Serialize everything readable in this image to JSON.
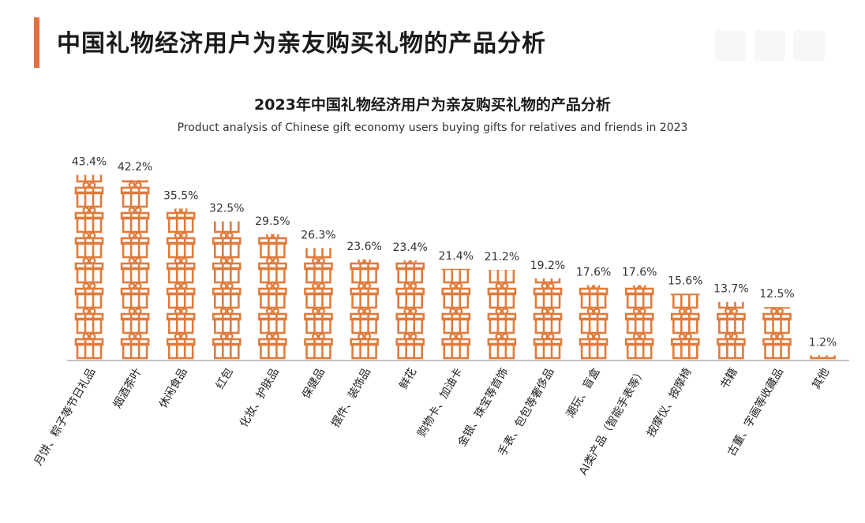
{
  "page": {
    "title": "中国礼物经济用户为亲友购买礼物的产品分析",
    "accent_color": "#E2703F"
  },
  "chart_data": {
    "type": "bar",
    "title": "2023年中国礼物经济用户为亲友购买礼物的产品分析",
    "subtitle": "Product analysis of Chinese gift economy users buying gifts for relatives and friends in 2023",
    "unit": "%",
    "bar_style": "stacked-gift-box-icons",
    "bar_color": "#E07B3C",
    "ylim": [
      0,
      45
    ],
    "grid": false,
    "categories": [
      "月饼、粽子等节日礼品",
      "烟酒茶叶",
      "休闲食品",
      "红包",
      "化妆、护肤品",
      "保健品",
      "摆件、装饰品",
      "鲜花",
      "购物卡、加油卡",
      "金银、珠宝等首饰",
      "手表、包包等奢侈品",
      "潮玩、盲盒",
      "AI类产品（智能手表等）",
      "按摩仪、按摩椅",
      "书籍",
      "古董、字画等收藏品",
      "其他"
    ],
    "values": [
      43.4,
      42.2,
      35.5,
      32.5,
      29.5,
      26.3,
      23.6,
      23.4,
      21.4,
      21.2,
      19.2,
      17.6,
      17.6,
      15.6,
      13.7,
      12.5,
      1.2
    ],
    "value_labels": [
      "43.4%",
      "42.2%",
      "35.5%",
      "32.5%",
      "29.5%",
      "26.3%",
      "23.6%",
      "23.4%",
      "21.4%",
      "21.2%",
      "19.2%",
      "17.6%",
      "17.6%",
      "15.6%",
      "13.7%",
      "12.5%",
      "1.2%"
    ]
  }
}
